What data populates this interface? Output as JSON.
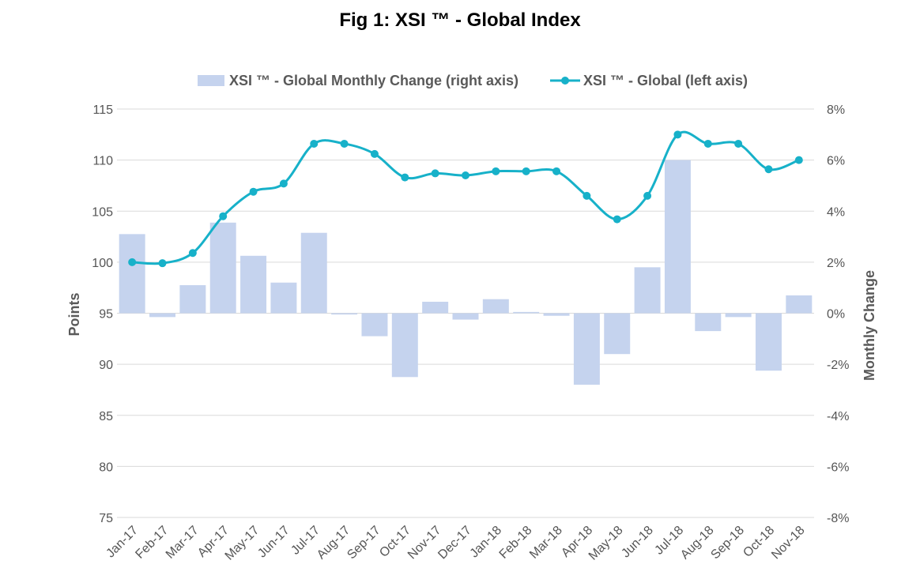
{
  "chart_data": {
    "type": "bar+line",
    "title": "Fig 1: XSI ™ - Global Index",
    "categories": [
      "Jan-17",
      "Feb-17",
      "Mar-17",
      "Apr-17",
      "May-17",
      "Jun-17",
      "Jul-17",
      "Aug-17",
      "Sep-17",
      "Oct-17",
      "Nov-17",
      "Dec-17",
      "Jan-18",
      "Feb-18",
      "Mar-18",
      "Apr-18",
      "May-18",
      "Jun-18",
      "Jul-18",
      "Aug-18",
      "Sep-18",
      "Oct-18",
      "Nov-18"
    ],
    "series": [
      {
        "name": "XSI ™ - Global Monthly Change (right axis)",
        "type": "bar",
        "axis": "right",
        "color": "#c5d3ee",
        "values": [
          3.1,
          -0.15,
          1.1,
          3.55,
          2.25,
          1.2,
          3.15,
          -0.05,
          -0.9,
          -2.5,
          0.45,
          -0.25,
          0.55,
          0.05,
          -0.1,
          -2.8,
          -1.6,
          1.8,
          6.0,
          -0.7,
          -0.15,
          -2.25,
          0.7
        ]
      },
      {
        "name": "XSI ™ - Global (left axis)",
        "type": "line",
        "axis": "left",
        "color": "#17b1c9",
        "values": [
          100.0,
          99.9,
          100.9,
          104.5,
          106.9,
          107.7,
          111.6,
          111.6,
          110.6,
          108.3,
          108.7,
          108.5,
          108.9,
          108.9,
          108.9,
          106.5,
          104.2,
          106.5,
          112.5,
          111.6,
          111.6,
          109.1,
          110.0
        ]
      }
    ],
    "ylabel": "Points",
    "y2label": "Monthly Change",
    "ylim": [
      75,
      115
    ],
    "y2lim": [
      -8,
      8
    ],
    "yticks": [
      "115",
      "110",
      "105",
      "100",
      "95",
      "90",
      "85",
      "80",
      "75"
    ],
    "y2ticks": [
      "8%",
      "6%",
      "4%",
      "2%",
      "0%",
      "-2%",
      "-4%",
      "-6%",
      "-8%"
    ],
    "grid": true,
    "legend_position": "top"
  }
}
